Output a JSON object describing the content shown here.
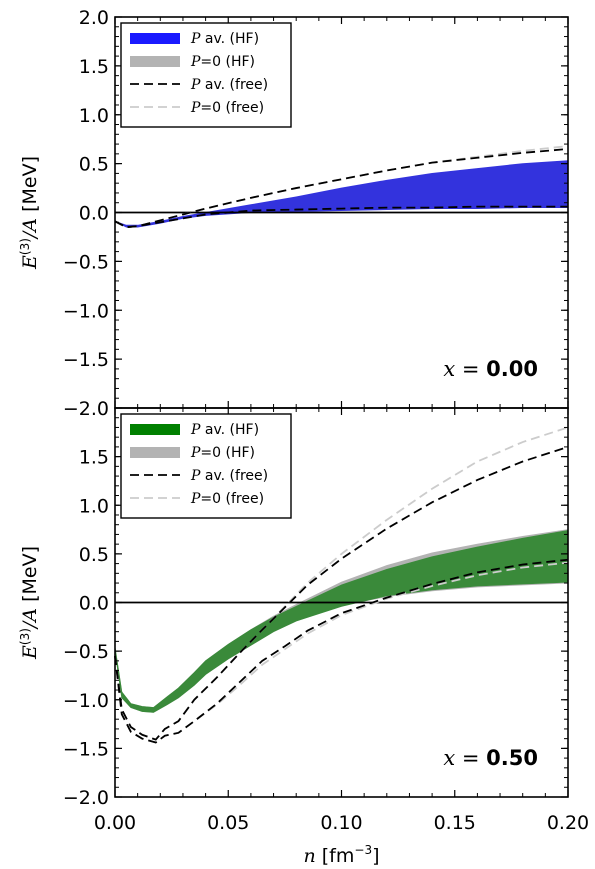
{
  "chart_data": [
    {
      "type": "area",
      "panel": "top",
      "x_label_var": "x",
      "x_label_eq": " = ",
      "x_label_value": "0.00",
      "xlabel_var": "n",
      "xlabel_unit": "[fm",
      "xlabel_exp": "−3",
      "xlabel_close": "]",
      "ylabel_pre": "E",
      "ylabel_sup": "(3)",
      "ylabel_post": "/A",
      "ylabel_unit": " [MeV]",
      "xlim": [
        0.0,
        0.2
      ],
      "ylim": [
        -2.0,
        2.0
      ],
      "xticks": [
        "0.00",
        "0.05",
        "0.10",
        "0.15",
        "0.20"
      ],
      "yticks": [
        "−2.0",
        "−1.5",
        "−1.0",
        "−0.5",
        "0.0",
        "0.5",
        "1.0",
        "1.5",
        "2.0"
      ],
      "legend_position": "top-left",
      "legend": [
        {
          "var": "P",
          "text": " av. (HF)",
          "style": "band",
          "color": "#1a1aff"
        },
        {
          "var": "P",
          "text": "=0 (HF)",
          "style": "band",
          "color": "#b3b3b3"
        },
        {
          "var": "P",
          "text": " av. (free)",
          "style": "dash",
          "color": "#000000"
        },
        {
          "var": "P",
          "text": "=0 (free)",
          "style": "dash",
          "color": "#cccccc"
        }
      ],
      "colors": {
        "band_pav": "#3333dd",
        "band_p0": "#b3b3b3",
        "dash_pav": "#000000",
        "dash_p0": "#cccccc"
      },
      "series": [
        {
          "name": "P av. (HF)",
          "kind": "band",
          "x": [
            0.0,
            0.005,
            0.01,
            0.02,
            0.03,
            0.04,
            0.06,
            0.08,
            0.1,
            0.12,
            0.14,
            0.16,
            0.18,
            0.2
          ],
          "lower": [
            -0.09,
            -0.15,
            -0.15,
            -0.11,
            -0.06,
            -0.03,
            0.0,
            0.01,
            0.02,
            0.03,
            0.04,
            0.04,
            0.05,
            0.05
          ],
          "upper": [
            -0.09,
            -0.13,
            -0.13,
            -0.09,
            -0.04,
            0.0,
            0.08,
            0.16,
            0.25,
            0.33,
            0.4,
            0.45,
            0.5,
            0.53
          ]
        },
        {
          "name": "P av. (free)",
          "kind": "dash",
          "role": "upper",
          "x": [
            0.0,
            0.005,
            0.01,
            0.02,
            0.03,
            0.04,
            0.06,
            0.08,
            0.1,
            0.12,
            0.14,
            0.16,
            0.18,
            0.2
          ],
          "y": [
            -0.09,
            -0.15,
            -0.14,
            -0.08,
            -0.02,
            0.04,
            0.15,
            0.25,
            0.34,
            0.43,
            0.51,
            0.56,
            0.61,
            0.65
          ]
        },
        {
          "name": "P av. (free)",
          "kind": "dash",
          "role": "lower",
          "x": [
            0.0,
            0.005,
            0.01,
            0.02,
            0.03,
            0.04,
            0.06,
            0.08,
            0.1,
            0.12,
            0.14,
            0.16,
            0.18,
            0.2
          ],
          "y": [
            -0.09,
            -0.15,
            -0.14,
            -0.1,
            -0.06,
            -0.02,
            0.02,
            0.03,
            0.04,
            0.05,
            0.05,
            0.06,
            0.06,
            0.06
          ]
        },
        {
          "name": "P=0 (free)",
          "kind": "dash",
          "role": "upper",
          "x": [
            0.0,
            0.005,
            0.01,
            0.02,
            0.03,
            0.04,
            0.06,
            0.08,
            0.1,
            0.12,
            0.14,
            0.16,
            0.18,
            0.2
          ],
          "y": [
            -0.09,
            -0.15,
            -0.14,
            -0.08,
            -0.02,
            0.04,
            0.15,
            0.25,
            0.34,
            0.43,
            0.51,
            0.57,
            0.63,
            0.68
          ]
        }
      ]
    },
    {
      "type": "area",
      "panel": "bottom",
      "x_label_var": "x",
      "x_label_eq": " = ",
      "x_label_value": "0.50",
      "xlim": [
        0.0,
        0.2
      ],
      "ylim": [
        -2.0,
        2.0
      ],
      "xticks": [
        "0.00",
        "0.05",
        "0.10",
        "0.15",
        "0.20"
      ],
      "yticks": [
        "−2.0",
        "−1.5",
        "−1.0",
        "−0.5",
        "0.0",
        "0.5",
        "1.0",
        "1.5"
      ],
      "legend_position": "top-left",
      "legend": [
        {
          "var": "P",
          "text": " av. (HF)",
          "style": "band",
          "color": "#008000"
        },
        {
          "var": "P",
          "text": "=0 (HF)",
          "style": "band",
          "color": "#b3b3b3"
        },
        {
          "var": "P",
          "text": " av. (free)",
          "style": "dash",
          "color": "#000000"
        },
        {
          "var": "P",
          "text": "=0 (free)",
          "style": "dash",
          "color": "#cccccc"
        }
      ],
      "colors": {
        "band_pav": "#3a8a3a",
        "band_p0": "#b3b3b3",
        "dash_pav": "#000000",
        "dash_p0": "#cccccc"
      },
      "series": [
        {
          "name": "P=0 (HF)",
          "kind": "band",
          "x": [
            0.0,
            0.003,
            0.007,
            0.012,
            0.017,
            0.023,
            0.028,
            0.035,
            0.04,
            0.05,
            0.06,
            0.07,
            0.08,
            0.1,
            0.12,
            0.14,
            0.16,
            0.18,
            0.2
          ],
          "lower": [
            -0.5,
            -0.98,
            -1.08,
            -1.12,
            -1.13,
            -1.05,
            -0.98,
            -0.85,
            -0.74,
            -0.58,
            -0.44,
            -0.3,
            -0.19,
            -0.03,
            0.06,
            0.12,
            0.16,
            0.18,
            0.2
          ],
          "upper": [
            -0.46,
            -0.92,
            -1.04,
            -1.07,
            -1.08,
            -0.97,
            -0.88,
            -0.72,
            -0.6,
            -0.43,
            -0.28,
            -0.14,
            -0.02,
            0.21,
            0.38,
            0.51,
            0.6,
            0.68,
            0.75
          ]
        },
        {
          "name": "P av. (HF)",
          "kind": "band",
          "x": [
            0.0,
            0.003,
            0.007,
            0.012,
            0.017,
            0.023,
            0.028,
            0.035,
            0.04,
            0.05,
            0.06,
            0.07,
            0.08,
            0.1,
            0.12,
            0.14,
            0.16,
            0.18,
            0.2
          ],
          "lower": [
            -0.5,
            -0.98,
            -1.08,
            -1.12,
            -1.13,
            -1.05,
            -0.98,
            -0.85,
            -0.74,
            -0.58,
            -0.44,
            -0.3,
            -0.19,
            -0.04,
            0.07,
            0.13,
            0.17,
            0.19,
            0.21
          ],
          "upper": [
            -0.46,
            -0.92,
            -1.04,
            -1.07,
            -1.08,
            -0.97,
            -0.88,
            -0.72,
            -0.6,
            -0.43,
            -0.28,
            -0.15,
            -0.04,
            0.18,
            0.34,
            0.47,
            0.57,
            0.66,
            0.74
          ]
        },
        {
          "name": "P av. (free)",
          "kind": "dash",
          "role": "upper",
          "x": [
            0.0,
            0.003,
            0.007,
            0.012,
            0.018,
            0.022,
            0.028,
            0.035,
            0.045,
            0.055,
            0.065,
            0.075,
            0.085,
            0.1,
            0.12,
            0.14,
            0.16,
            0.18,
            0.2
          ],
          "y": [
            -0.55,
            -1.1,
            -1.28,
            -1.36,
            -1.41,
            -1.3,
            -1.22,
            -1.0,
            -0.77,
            -0.52,
            -0.28,
            -0.05,
            0.18,
            0.45,
            0.76,
            1.03,
            1.26,
            1.45,
            1.6
          ]
        },
        {
          "name": "P av. (free)",
          "kind": "dash",
          "role": "lower",
          "x": [
            0.0,
            0.003,
            0.007,
            0.012,
            0.018,
            0.022,
            0.028,
            0.035,
            0.045,
            0.055,
            0.065,
            0.075,
            0.085,
            0.1,
            0.12,
            0.14,
            0.16,
            0.18,
            0.2
          ],
          "y": [
            -0.55,
            -1.15,
            -1.33,
            -1.4,
            -1.44,
            -1.37,
            -1.34,
            -1.22,
            -1.04,
            -0.82,
            -0.6,
            -0.45,
            -0.29,
            -0.11,
            0.05,
            0.19,
            0.31,
            0.39,
            0.44
          ]
        },
        {
          "name": "P=0 (free)",
          "kind": "dash",
          "role": "upper",
          "x": [
            0.0,
            0.003,
            0.007,
            0.012,
            0.018,
            0.022,
            0.028,
            0.035,
            0.045,
            0.055,
            0.065,
            0.075,
            0.085,
            0.1,
            0.12,
            0.14,
            0.16,
            0.18,
            0.2
          ],
          "y": [
            -0.55,
            -1.1,
            -1.28,
            -1.36,
            -1.41,
            -1.3,
            -1.22,
            -1.0,
            -0.77,
            -0.52,
            -0.28,
            -0.04,
            0.2,
            0.5,
            0.85,
            1.17,
            1.45,
            1.65,
            1.8
          ]
        },
        {
          "name": "P=0 (free)",
          "kind": "dash",
          "role": "lower",
          "x": [
            0.0,
            0.003,
            0.007,
            0.012,
            0.018,
            0.022,
            0.028,
            0.035,
            0.045,
            0.055,
            0.065,
            0.075,
            0.085,
            0.1,
            0.12,
            0.14,
            0.16,
            0.18,
            0.2
          ],
          "y": [
            -0.55,
            -1.15,
            -1.33,
            -1.4,
            -1.44,
            -1.37,
            -1.34,
            -1.22,
            -1.05,
            -0.85,
            -0.64,
            -0.48,
            -0.32,
            -0.13,
            0.04,
            0.17,
            0.28,
            0.36,
            0.41
          ]
        }
      ]
    }
  ]
}
